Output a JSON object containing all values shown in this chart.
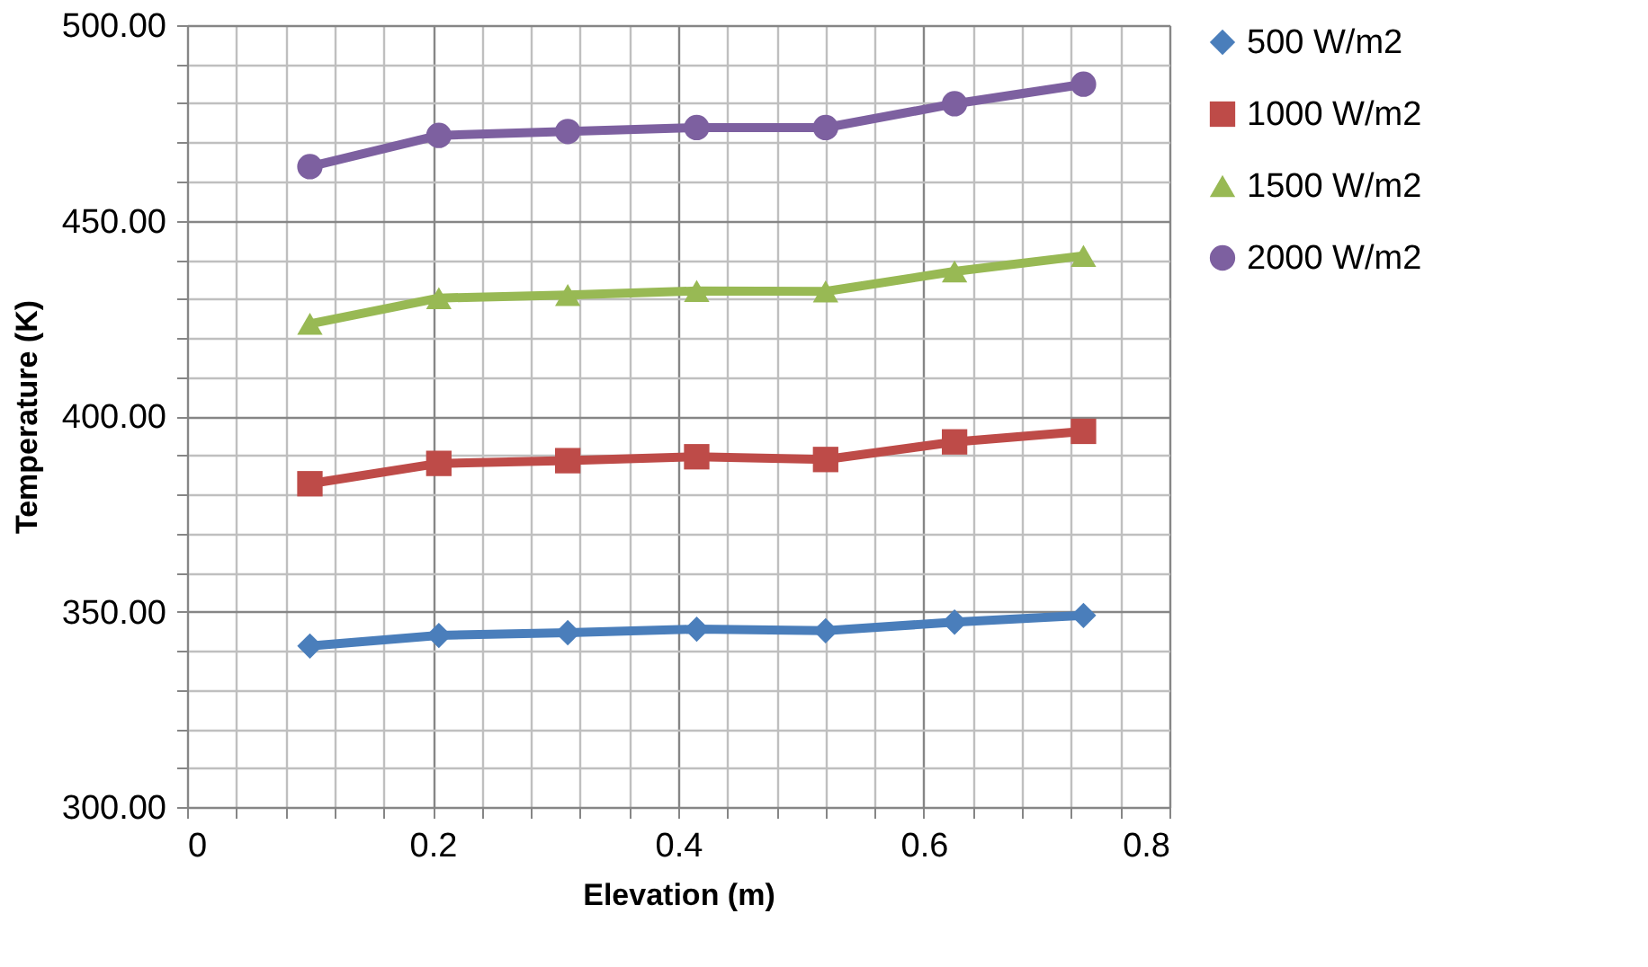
{
  "chart_data": {
    "type": "line",
    "xlabel": "Elevation (m)",
    "ylabel": "Temperature (K)",
    "x": [
      0.1,
      0.205,
      0.31,
      0.415,
      0.52,
      0.625,
      0.73
    ],
    "series": [
      {
        "name": "500 W/m2",
        "color": "#4a7ebb",
        "marker": "diamond",
        "values": [
          341.2,
          343.9,
          344.6,
          345.5,
          345.1,
          347.3,
          349
        ]
      },
      {
        "name": "1000 W/m2",
        "color": "#be4b48",
        "marker": "square",
        "values": [
          382.7,
          387.9,
          388.6,
          389.6,
          388.9,
          393.4,
          396.1
        ]
      },
      {
        "name": "1500 W/m2",
        "color": "#98b954",
        "marker": "triangle",
        "values": [
          423.6,
          430.2,
          431,
          432,
          431.9,
          437,
          441
        ]
      },
      {
        "name": "2000 W/m2",
        "color": "#7d60a0",
        "marker": "circle",
        "values": [
          463.8,
          471.8,
          472.8,
          473.8,
          473.8,
          479.9,
          484.9
        ]
      }
    ],
    "xlim": [
      0,
      0.8
    ],
    "xticks": [
      0,
      {
        "value": 0.04,
        "label": null
      },
      {
        "value": 0.08,
        "label": null
      },
      {
        "value": 0.12,
        "label": null
      },
      {
        "value": 0.16,
        "label": null
      },
      0.2,
      {
        "value": 0.24,
        "label": null
      },
      {
        "value": 0.28,
        "label": null
      },
      {
        "value": 0.32,
        "label": null
      },
      {
        "value": 0.36,
        "label": null
      },
      0.4,
      {
        "value": 0.44,
        "label": null
      },
      {
        "value": 0.48,
        "label": null
      },
      {
        "value": 0.52,
        "label": null
      },
      {
        "value": 0.56,
        "label": null
      },
      0.6,
      {
        "value": 0.64,
        "label": null
      },
      {
        "value": 0.68,
        "label": null
      },
      {
        "value": 0.72,
        "label": null
      },
      {
        "value": 0.76,
        "label": null
      },
      0.8
    ],
    "ylim": [
      300,
      500
    ],
    "yticks": [
      {
        "value": 300,
        "label": "300.00"
      },
      {
        "value": 310,
        "label": null
      },
      {
        "value": 320,
        "label": null
      },
      {
        "value": 330,
        "label": null
      },
      {
        "value": 340,
        "label": null
      },
      {
        "value": 350,
        "label": "350.00"
      },
      {
        "value": 360,
        "label": null
      },
      {
        "value": 370,
        "label": null
      },
      {
        "value": 380,
        "label": null
      },
      {
        "value": 390,
        "label": null
      },
      {
        "value": 400,
        "label": "400.00"
      },
      {
        "value": 410,
        "label": null
      },
      {
        "value": 420,
        "label": null
      },
      {
        "value": 430,
        "label": null
      },
      {
        "value": 440,
        "label": null
      },
      {
        "value": 450,
        "label": "450.00"
      },
      {
        "value": 460,
        "label": null
      },
      {
        "value": 470,
        "label": null
      },
      {
        "value": 480,
        "label": null
      },
      {
        "value": 490,
        "label": null
      },
      {
        "value": 500,
        "label": "500.00"
      }
    ],
    "grid": true,
    "legend": "right"
  }
}
